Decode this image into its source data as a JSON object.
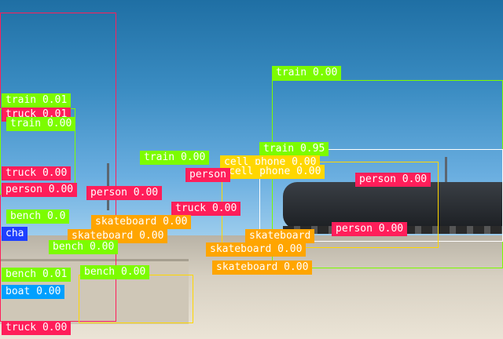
{
  "colors": {
    "train": "#7cfc00",
    "truck": "#ff1e5a",
    "person": "#ff1e5a",
    "bench": "#7cfc00",
    "skateboard": "#ffa500",
    "cell_phone": "#ffd700",
    "boat": "#00a0ff",
    "chair": "#1e40ff"
  },
  "detections": [
    {
      "label": "train 0.00"
    },
    {
      "label": "train 0.95"
    },
    {
      "label": "train 0.01"
    },
    {
      "label": "truck 0.01"
    },
    {
      "label": "train 0.00"
    },
    {
      "label": "train 0.00"
    },
    {
      "label": "cell phone 0.00"
    },
    {
      "label": "cell phone 0.00"
    },
    {
      "label": "person"
    },
    {
      "label": "person 0.00"
    },
    {
      "label": "truck 0.00"
    },
    {
      "label": "person 0.00"
    },
    {
      "label": "person 0.00"
    },
    {
      "label": "person 0.00"
    },
    {
      "label": "truck 0.00"
    },
    {
      "label": "bench 0.0"
    },
    {
      "label": "skateboard 0.00"
    },
    {
      "label": "cha"
    },
    {
      "label": "skateboard 0.00"
    },
    {
      "label": "skateboard"
    },
    {
      "label": "skateboard 0.00"
    },
    {
      "label": "skateboard 0.00"
    },
    {
      "label": "bench 0.00"
    },
    {
      "label": "bench 0.01"
    },
    {
      "label": "bench 0.00"
    },
    {
      "label": "boat 0.00"
    },
    {
      "label": "truck 0.00"
    }
  ]
}
